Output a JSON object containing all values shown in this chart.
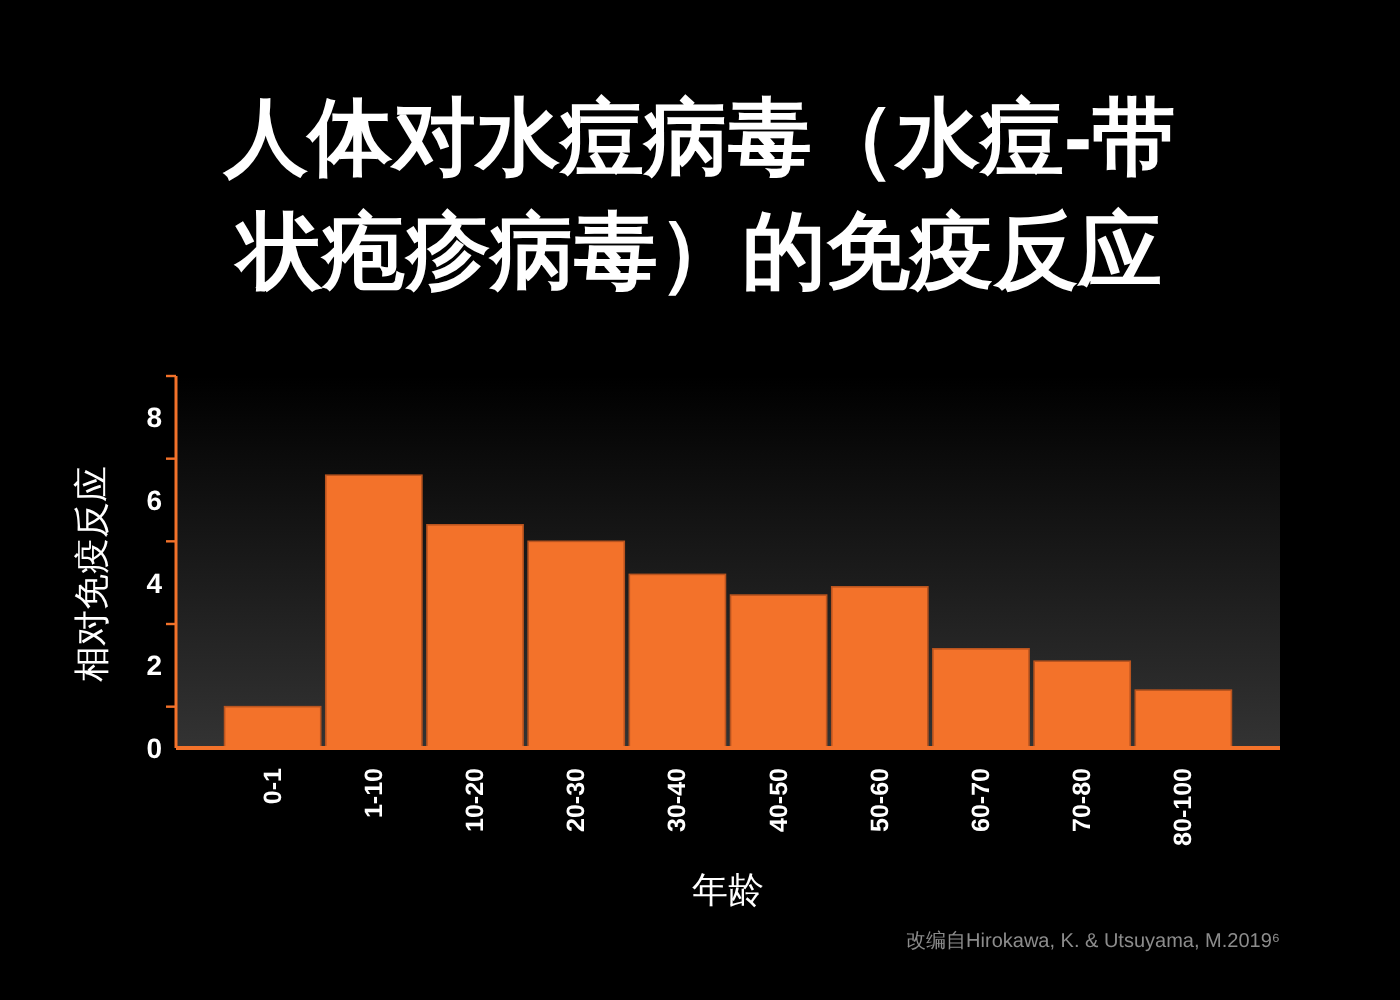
{
  "chart_data": {
    "type": "bar",
    "title": "人体对水痘病毒（水痘-带状疱疹病毒）的免疫反应",
    "xlabel": "年龄",
    "ylabel": "相对免疫反应",
    "annotations": [
      "改编自Hirokawa, K. & Utsuyama, M.2019⁶"
    ],
    "categories": [
      "0-1",
      "1-10",
      "10-20",
      "20-30",
      "30-40",
      "40-50",
      "50-60",
      "60-70",
      "70-80",
      "80-100"
    ],
    "values": [
      1.0,
      6.6,
      5.4,
      5.0,
      4.2,
      3.7,
      3.9,
      2.4,
      2.1,
      1.4
    ],
    "color": "#f3722a",
    "ylim": [
      0,
      9
    ],
    "yticks": [
      0,
      {
        "value": 1,
        "label": null
      },
      2,
      {
        "value": 3,
        "label": null
      },
      4,
      {
        "value": 5,
        "label": null
      },
      6,
      {
        "value": 7,
        "label": null
      },
      8,
      {
        "value": 9,
        "label": null
      }
    ]
  }
}
